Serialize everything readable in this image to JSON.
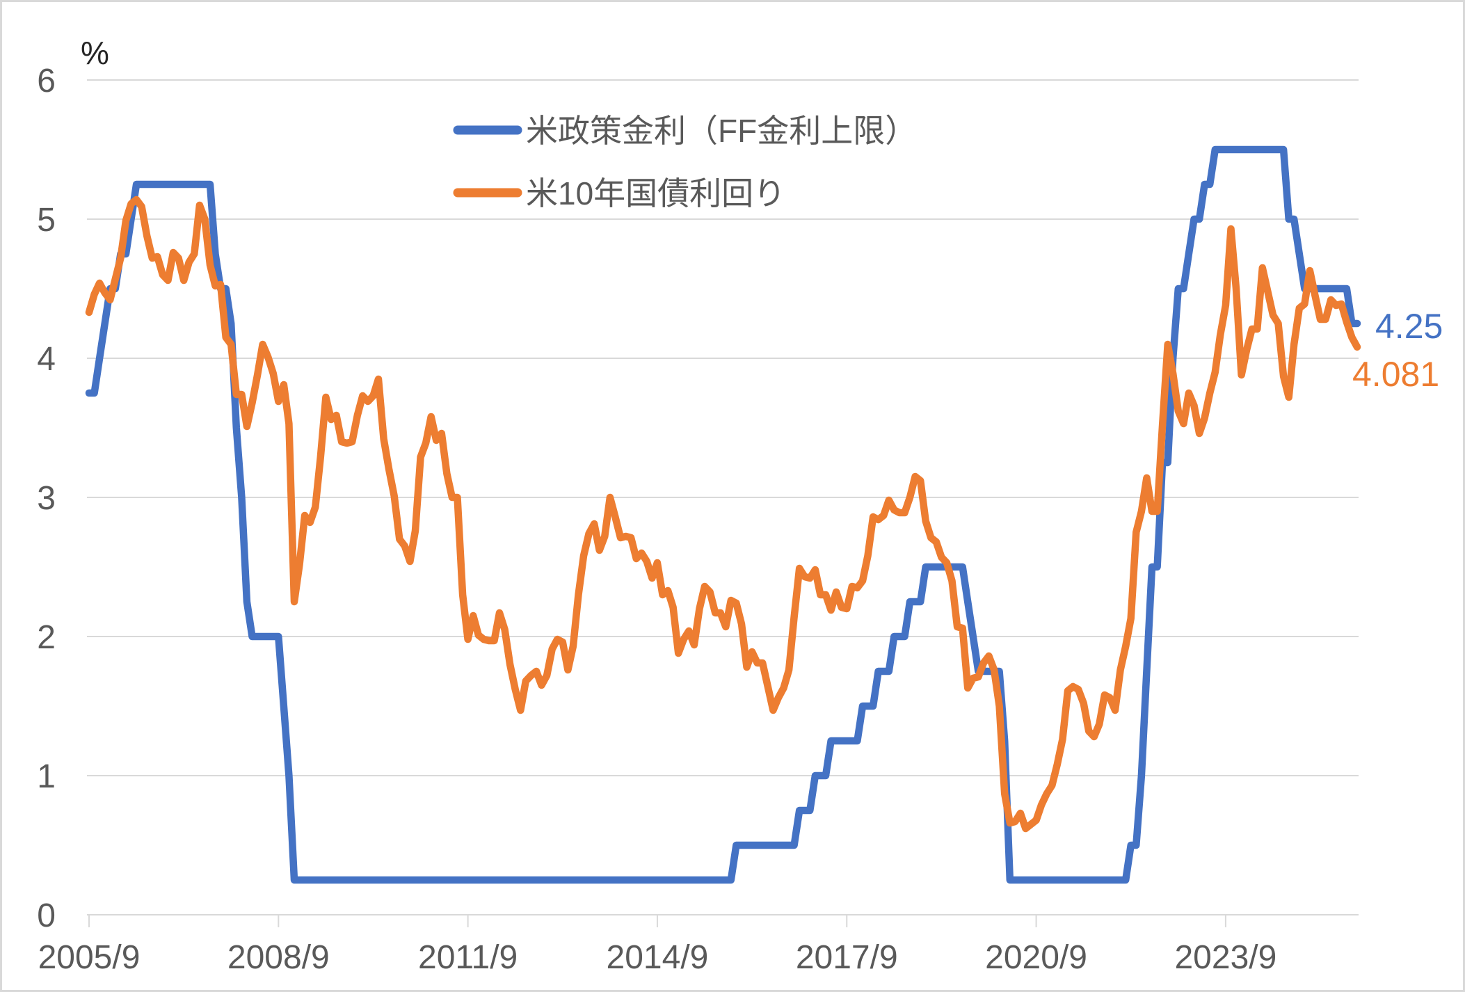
{
  "chart_data": {
    "type": "line",
    "title": "",
    "ylabel": "%",
    "xlabel": "",
    "x_start": "2005/9",
    "x_end": "2025/10",
    "frequency": "monthly",
    "ylim": [
      0,
      6
    ],
    "y_ticks": [
      "0",
      "1",
      "2",
      "3",
      "4",
      "5",
      "6"
    ],
    "x_tick_labels": [
      "2005/9",
      "2008/9",
      "2011/9",
      "2014/9",
      "2017/9",
      "2020/9",
      "2023/9"
    ],
    "x_tick_month_indices": [
      0,
      36,
      72,
      108,
      144,
      180,
      216
    ],
    "grid": "horizontal",
    "legend_position": "top-center-inside",
    "colors": {
      "policy_rate": "#4472C4",
      "treasury_yield": "#ED7D31",
      "gridline": "#D9D9D9",
      "axis_text": "#595959",
      "frame_border": "#D9D9D9"
    },
    "series": [
      {
        "name": "米政策金利（FF金利上限）",
        "color": "#4472C4",
        "end_label": "4.25",
        "values": [
          3.75,
          3.75,
          4,
          4.25,
          4.5,
          4.5,
          4.75,
          4.75,
          5,
          5.25,
          5.25,
          5.25,
          5.25,
          5.25,
          5.25,
          5.25,
          5.25,
          5.25,
          5.25,
          5.25,
          5.25,
          5.25,
          5.25,
          5.25,
          4.75,
          4.5,
          4.5,
          4.25,
          3.5,
          3,
          2.25,
          2,
          2,
          2,
          2,
          2,
          2,
          1.5,
          1,
          0.25,
          0.25,
          0.25,
          0.25,
          0.25,
          0.25,
          0.25,
          0.25,
          0.25,
          0.25,
          0.25,
          0.25,
          0.25,
          0.25,
          0.25,
          0.25,
          0.25,
          0.25,
          0.25,
          0.25,
          0.25,
          0.25,
          0.25,
          0.25,
          0.25,
          0.25,
          0.25,
          0.25,
          0.25,
          0.25,
          0.25,
          0.25,
          0.25,
          0.25,
          0.25,
          0.25,
          0.25,
          0.25,
          0.25,
          0.25,
          0.25,
          0.25,
          0.25,
          0.25,
          0.25,
          0.25,
          0.25,
          0.25,
          0.25,
          0.25,
          0.25,
          0.25,
          0.25,
          0.25,
          0.25,
          0.25,
          0.25,
          0.25,
          0.25,
          0.25,
          0.25,
          0.25,
          0.25,
          0.25,
          0.25,
          0.25,
          0.25,
          0.25,
          0.25,
          0.25,
          0.25,
          0.25,
          0.25,
          0.25,
          0.25,
          0.25,
          0.25,
          0.25,
          0.25,
          0.25,
          0.25,
          0.25,
          0.25,
          0.25,
          0.5,
          0.5,
          0.5,
          0.5,
          0.5,
          0.5,
          0.5,
          0.5,
          0.5,
          0.5,
          0.5,
          0.5,
          0.75,
          0.75,
          0.75,
          1,
          1,
          1,
          1.25,
          1.25,
          1.25,
          1.25,
          1.25,
          1.25,
          1.5,
          1.5,
          1.5,
          1.75,
          1.75,
          1.75,
          2,
          2,
          2,
          2.25,
          2.25,
          2.25,
          2.5,
          2.5,
          2.5,
          2.5,
          2.5,
          2.5,
          2.5,
          2.5,
          2.25,
          2,
          1.75,
          1.75,
          1.75,
          1.75,
          1.75,
          1.25,
          0.25,
          0.25,
          0.25,
          0.25,
          0.25,
          0.25,
          0.25,
          0.25,
          0.25,
          0.25,
          0.25,
          0.25,
          0.25,
          0.25,
          0.25,
          0.25,
          0.25,
          0.25,
          0.25,
          0.25,
          0.25,
          0.25,
          0.25,
          0.5,
          0.5,
          1,
          1.75,
          2.5,
          2.5,
          3.25,
          3.25,
          4,
          4.5,
          4.5,
          4.75,
          5,
          5,
          5.25,
          5.25,
          5.5,
          5.5,
          5.5,
          5.5,
          5.5,
          5.5,
          5.5,
          5.5,
          5.5,
          5.5,
          5.5,
          5.5,
          5.5,
          5.5,
          5,
          5,
          4.75,
          4.5,
          4.5,
          4.5,
          4.5,
          4.5,
          4.5,
          4.5,
          4.5,
          4.5,
          4.25,
          4.25
        ]
      },
      {
        "name": "米10年国債利回り",
        "color": "#ED7D31",
        "end_label": "4.081",
        "values": [
          4.33,
          4.46,
          4.54,
          4.47,
          4.42,
          4.57,
          4.72,
          4.99,
          5.11,
          5.14,
          5.09,
          4.88,
          4.72,
          4.73,
          4.6,
          4.56,
          4.76,
          4.72,
          4.56,
          4.69,
          4.75,
          5.1,
          5,
          4.67,
          4.52,
          4.53,
          4.15,
          4.1,
          3.74,
          3.74,
          3.51,
          3.68,
          3.88,
          4.1,
          4.01,
          3.89,
          3.69,
          3.81,
          3.53,
          2.25,
          2.52,
          2.87,
          2.82,
          2.93,
          3.29,
          3.72,
          3.56,
          3.59,
          3.4,
          3.39,
          3.4,
          3.59,
          3.73,
          3.69,
          3.73,
          3.85,
          3.42,
          3.2,
          3.01,
          2.7,
          2.65,
          2.54,
          2.76,
          3.29,
          3.39,
          3.58,
          3.41,
          3.46,
          3.17,
          3,
          3,
          2.3,
          1.98,
          2.15,
          2.01,
          1.98,
          1.97,
          1.97,
          2.17,
          2.05,
          1.8,
          1.62,
          1.47,
          1.68,
          1.72,
          1.75,
          1.65,
          1.72,
          1.91,
          1.98,
          1.96,
          1.76,
          1.93,
          2.3,
          2.58,
          2.74,
          2.81,
          2.62,
          2.72,
          3,
          2.86,
          2.71,
          2.72,
          2.71,
          2.56,
          2.6,
          2.54,
          2.42,
          2.53,
          2.3,
          2.33,
          2.21,
          1.88,
          1.98,
          2.04,
          1.94,
          2.2,
          2.36,
          2.32,
          2.17,
          2.17,
          2.07,
          2.26,
          2.24,
          2.09,
          1.78,
          1.89,
          1.81,
          1.81,
          1.64,
          1.47,
          1.56,
          1.63,
          1.76,
          2.14,
          2.49,
          2.43,
          2.42,
          2.48,
          2.3,
          2.3,
          2.19,
          2.32,
          2.21,
          2.2,
          2.36,
          2.35,
          2.4,
          2.58,
          2.86,
          2.84,
          2.87,
          2.98,
          2.91,
          2.89,
          2.89,
          3,
          3.15,
          3.12,
          2.83,
          2.71,
          2.68,
          2.57,
          2.53,
          2.4,
          2.07,
          2.06,
          1.63,
          1.7,
          1.71,
          1.81,
          1.86,
          1.76,
          1.5,
          0.87,
          0.66,
          0.67,
          0.73,
          0.62,
          0.65,
          0.68,
          0.79,
          0.87,
          0.93,
          1.08,
          1.26,
          1.61,
          1.64,
          1.62,
          1.52,
          1.32,
          1.28,
          1.37,
          1.58,
          1.56,
          1.47,
          1.76,
          1.93,
          2.13,
          2.75,
          2.9,
          3.14,
          2.9,
          2.9,
          3.52,
          4.1,
          3.89,
          3.62,
          3.53,
          3.75,
          3.66,
          3.46,
          3.57,
          3.75,
          3.9,
          4.17,
          4.38,
          4.93,
          4.5,
          3.88,
          4.06,
          4.21,
          4.21,
          4.65,
          4.48,
          4.31,
          4.25,
          3.87,
          3.72,
          4.1,
          4.36,
          4.39,
          4.63,
          4.45,
          4.28,
          4.28,
          4.42,
          4.38,
          4.39,
          4.26,
          4.15,
          4.081
        ]
      }
    ]
  }
}
